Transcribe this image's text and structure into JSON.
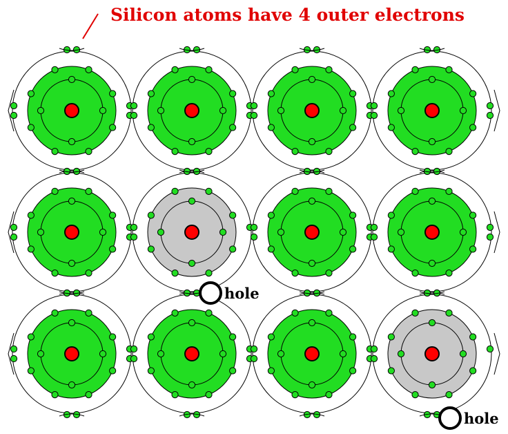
{
  "title": "Silicon atoms have 4 outer electrons",
  "hole_label": "hole",
  "colors": {
    "title_red": "#e00000",
    "shell_green": "#22dd22",
    "shell_gray": "#c8c8c8",
    "electron_green": "#22dd22",
    "nucleus_red": "#ff0000",
    "line_black": "#000000",
    "background": "#ffffff"
  },
  "lattice": {
    "rows": 3,
    "columns": 4,
    "atoms": [
      {
        "row": 1,
        "col": 1,
        "type": "silicon"
      },
      {
        "row": 1,
        "col": 2,
        "type": "silicon"
      },
      {
        "row": 1,
        "col": 3,
        "type": "silicon"
      },
      {
        "row": 1,
        "col": 4,
        "type": "silicon"
      },
      {
        "row": 2,
        "col": 1,
        "type": "silicon"
      },
      {
        "row": 2,
        "col": 2,
        "type": "dopant"
      },
      {
        "row": 2,
        "col": 3,
        "type": "silicon"
      },
      {
        "row": 2,
        "col": 4,
        "type": "silicon"
      },
      {
        "row": 3,
        "col": 1,
        "type": "silicon"
      },
      {
        "row": 3,
        "col": 2,
        "type": "silicon"
      },
      {
        "row": 3,
        "col": 3,
        "type": "silicon"
      },
      {
        "row": 3,
        "col": 4,
        "type": "dopant"
      }
    ]
  },
  "holes": [
    {
      "label": "hole",
      "near_atom": "row 2, col 2"
    },
    {
      "label": "hole",
      "near_atom": "row 3, col 4"
    }
  ]
}
